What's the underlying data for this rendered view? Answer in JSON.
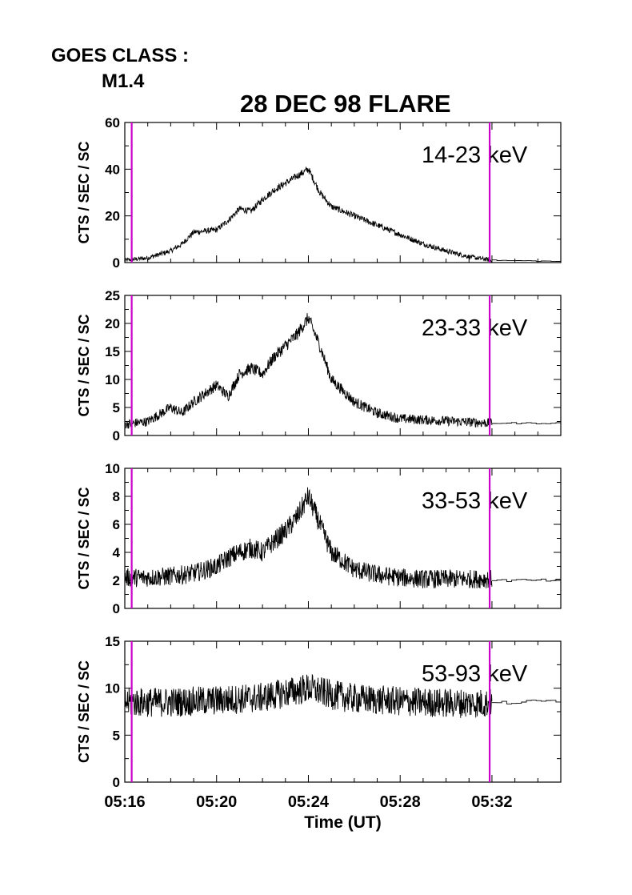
{
  "header": {
    "goes_label": "GOES CLASS :",
    "goes_value": "M1.4",
    "title": "28 DEC 98 FLARE"
  },
  "colors": {
    "axis": "#000000",
    "trace": "#000000",
    "marker": "#cc00cc"
  },
  "chart_data": [
    {
      "type": "line",
      "band_label": "14-23 keV",
      "ylabel": "CTS / SEC / SC",
      "ylim": [
        0,
        60
      ],
      "yticks": [
        0,
        20,
        40,
        60
      ],
      "y_minor_step": 10,
      "xlim_minutes": [
        "05:16",
        "05:35"
      ],
      "xtick_labels": [
        "05:16",
        "05:20",
        "05:24",
        "05:28",
        "05:32"
      ],
      "noise": 0.8,
      "series": [
        {
          "x": [
            "05:16",
            "05:17",
            "05:18",
            "05:18.5",
            "05:19",
            "05:20",
            "05:20.5",
            "05:21",
            "05:21.5",
            "05:22",
            "05:22.5",
            "05:23",
            "05:23.5",
            "05:24",
            "05:24.5",
            "05:25",
            "05:26",
            "05:27",
            "05:28",
            "05:29",
            "05:30",
            "05:31",
            "05:32"
          ],
          "y": [
            1,
            2,
            5,
            8,
            13,
            14,
            18,
            23,
            22,
            27,
            31,
            34,
            37,
            40,
            30,
            24,
            20,
            16,
            12,
            8,
            5,
            2.5,
            1
          ]
        }
      ],
      "tail": {
        "x": [
          "05:32",
          "05:35"
        ],
        "y": [
          1,
          0.5
        ]
      },
      "markers_x": [
        "05:16.3",
        "05:31.9"
      ]
    },
    {
      "type": "line",
      "band_label": "23-33 keV",
      "ylabel": "CTS / SEC / SC",
      "ylim": [
        0,
        25
      ],
      "yticks": [
        0,
        5,
        10,
        15,
        20,
        25
      ],
      "y_minor_step": 2.5,
      "xlim_minutes": [
        "05:16",
        "05:35"
      ],
      "xtick_labels": [
        "05:16",
        "05:20",
        "05:24",
        "05:28",
        "05:32"
      ],
      "noise": 0.7,
      "series": [
        {
          "x": [
            "05:16",
            "05:17",
            "05:18",
            "05:18.5",
            "05:19",
            "05:20",
            "05:20.5",
            "05:21",
            "05:21.5",
            "05:22",
            "05:22.5",
            "05:23",
            "05:23.5",
            "05:24",
            "05:24.5",
            "05:25",
            "05:26",
            "05:27",
            "05:28",
            "05:29",
            "05:30",
            "05:31",
            "05:32"
          ],
          "y": [
            2,
            2.5,
            5,
            4,
            6,
            9,
            7,
            11,
            12,
            11,
            14,
            16,
            18,
            21,
            16,
            10,
            6,
            4,
            3,
            2.8,
            2.6,
            2.4,
            2.2
          ]
        }
      ],
      "tail": {
        "x": [
          "05:32",
          "05:35"
        ],
        "y": [
          2.2,
          2.2
        ]
      },
      "markers_x": [
        "05:16.3",
        "05:31.9"
      ]
    },
    {
      "type": "line",
      "band_label": "33-53 keV",
      "ylabel": "CTS / SEC / SC",
      "ylim": [
        0,
        10
      ],
      "yticks": [
        0,
        2,
        4,
        6,
        8,
        10
      ],
      "y_minor_step": 1,
      "xlim_minutes": [
        "05:16",
        "05:35"
      ],
      "xtick_labels": [
        "05:16",
        "05:20",
        "05:24",
        "05:28",
        "05:32"
      ],
      "noise": 0.55,
      "series": [
        {
          "x": [
            "05:16",
            "05:17",
            "05:18",
            "05:19",
            "05:20",
            "05:20.5",
            "05:21",
            "05:21.5",
            "05:22",
            "05:22.5",
            "05:23",
            "05:23.5",
            "05:24",
            "05:24.5",
            "05:25",
            "05:26",
            "05:27",
            "05:28",
            "05:29",
            "05:30",
            "05:31",
            "05:32"
          ],
          "y": [
            2.2,
            2.2,
            2.3,
            2.5,
            3,
            3.6,
            4,
            4.3,
            4,
            4.8,
            5.5,
            6.5,
            8,
            6,
            4,
            2.8,
            2.4,
            2.2,
            2.1,
            2.1,
            2.1,
            2.1
          ]
        }
      ],
      "tail": {
        "x": [
          "05:32",
          "05:35"
        ],
        "y": [
          2,
          2
        ]
      },
      "markers_x": [
        "05:16.3",
        "05:31.9"
      ]
    },
    {
      "type": "line",
      "band_label": "53-93 keV",
      "ylabel": "CTS / SEC / SC",
      "ylim": [
        0,
        15
      ],
      "yticks": [
        0,
        5,
        10,
        15
      ],
      "y_minor_step": 2.5,
      "xlabel": "Time (UT)",
      "xlim_minutes": [
        "05:16",
        "05:35"
      ],
      "xtick_labels": [
        "05:16",
        "05:20",
        "05:24",
        "05:28",
        "05:32"
      ],
      "noise": 1.1,
      "series": [
        {
          "x": [
            "05:16",
            "05:18",
            "05:20",
            "05:22",
            "05:23",
            "05:24",
            "05:25",
            "05:26",
            "05:28",
            "05:30",
            "05:32"
          ],
          "y": [
            8.5,
            8.5,
            8.7,
            9,
            9.5,
            10,
            9.3,
            8.9,
            8.6,
            8.4,
            8.4
          ]
        }
      ],
      "tail": {
        "x": [
          "05:32",
          "05:35"
        ],
        "y": [
          8.4,
          8.7
        ]
      },
      "markers_x": [
        "05:16.3",
        "05:31.9"
      ]
    }
  ]
}
